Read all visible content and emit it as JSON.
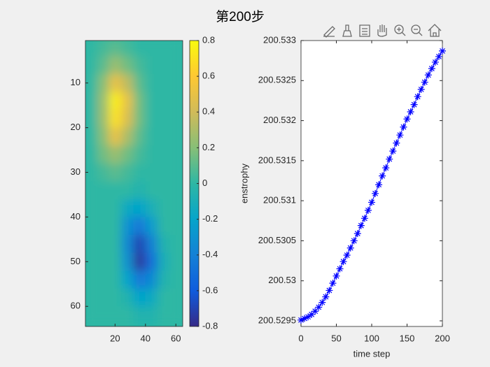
{
  "title": "第200步",
  "chart_data": [
    {
      "type": "contour",
      "colormap": "parula",
      "ydir": "reverse",
      "x": [
        4,
        12,
        20,
        28,
        36,
        44,
        52,
        60
      ],
      "y": [
        2,
        6,
        10,
        14,
        18,
        22,
        26,
        30,
        34,
        38,
        42,
        46,
        50,
        54,
        58,
        62
      ],
      "z": [
        [
          0,
          0.05,
          0.1,
          0.05,
          0,
          0,
          0,
          0
        ],
        [
          0,
          0.1,
          0.25,
          0.15,
          0.05,
          0,
          0,
          0
        ],
        [
          0,
          0.2,
          0.5,
          0.35,
          0.1,
          0,
          0,
          0
        ],
        [
          0,
          0.25,
          0.75,
          0.5,
          0.15,
          0,
          0,
          0
        ],
        [
          0,
          0.25,
          0.7,
          0.45,
          0.15,
          0,
          0,
          0
        ],
        [
          0,
          0.2,
          0.5,
          0.3,
          0.1,
          0,
          0,
          0
        ],
        [
          0,
          0.15,
          0.25,
          0.15,
          0.05,
          0,
          0,
          0
        ],
        [
          0,
          0.05,
          0.1,
          0.05,
          0,
          0,
          0,
          0
        ],
        [
          0,
          0,
          0,
          0,
          -0.05,
          0,
          0,
          0
        ],
        [
          0,
          0,
          0,
          -0.15,
          -0.2,
          -0.1,
          0,
          0
        ],
        [
          0,
          0,
          0,
          -0.3,
          -0.45,
          -0.25,
          0,
          0
        ],
        [
          0,
          0,
          0,
          -0.35,
          -0.7,
          -0.4,
          -0.05,
          0
        ],
        [
          0,
          0,
          0,
          -0.3,
          -0.75,
          -0.5,
          -0.1,
          0
        ],
        [
          0,
          0,
          0,
          -0.2,
          -0.45,
          -0.35,
          -0.05,
          0
        ],
        [
          0,
          0,
          0,
          -0.05,
          -0.2,
          -0.15,
          0,
          0
        ],
        [
          0,
          0,
          0,
          0,
          -0.05,
          -0.05,
          0,
          0
        ]
      ],
      "xlim": [
        0.5,
        64.5
      ],
      "ylim": [
        0.5,
        64.5
      ],
      "xticks": [
        20,
        40,
        60
      ],
      "yticks": [
        10,
        20,
        30,
        40,
        50,
        60
      ],
      "clim": [
        -0.8,
        0.8
      ],
      "cticks": [
        -0.8,
        -0.6,
        -0.4,
        -0.2,
        0,
        0.2,
        0.4,
        0.6,
        0.8
      ]
    },
    {
      "type": "line",
      "color": "#0000ff",
      "marker": "*",
      "xlabel": "time step",
      "ylabel": "enstrophy",
      "x": [
        0,
        5,
        10,
        15,
        20,
        25,
        30,
        35,
        40,
        45,
        50,
        55,
        60,
        65,
        70,
        75,
        80,
        85,
        90,
        95,
        100,
        105,
        110,
        115,
        120,
        125,
        130,
        135,
        140,
        145,
        150,
        155,
        160,
        165,
        170,
        175,
        180,
        185,
        190,
        195,
        200
      ],
      "values": [
        200.52951,
        200.52953,
        200.52955,
        200.52958,
        200.52962,
        200.52967,
        200.52973,
        200.5298,
        200.52988,
        200.52997,
        200.53006,
        200.53015,
        200.53024,
        200.53032,
        200.53041,
        200.5305,
        200.53059,
        200.53069,
        200.53078,
        200.53088,
        200.53098,
        200.53109,
        200.5312,
        200.53131,
        200.53141,
        200.53152,
        200.53162,
        200.53172,
        200.53182,
        200.53192,
        200.53202,
        200.53211,
        200.5322,
        200.5323,
        200.53239,
        200.53248,
        200.53257,
        200.53265,
        200.53273,
        200.5328,
        200.53287
      ],
      "xlim": [
        0,
        200
      ],
      "ylim": [
        200.52943,
        200.533
      ],
      "xticks": [
        0,
        50,
        100,
        150,
        200
      ],
      "yticks": [
        200.5295,
        200.53,
        200.5305,
        200.531,
        200.5315,
        200.532,
        200.5325,
        200.533
      ]
    }
  ]
}
